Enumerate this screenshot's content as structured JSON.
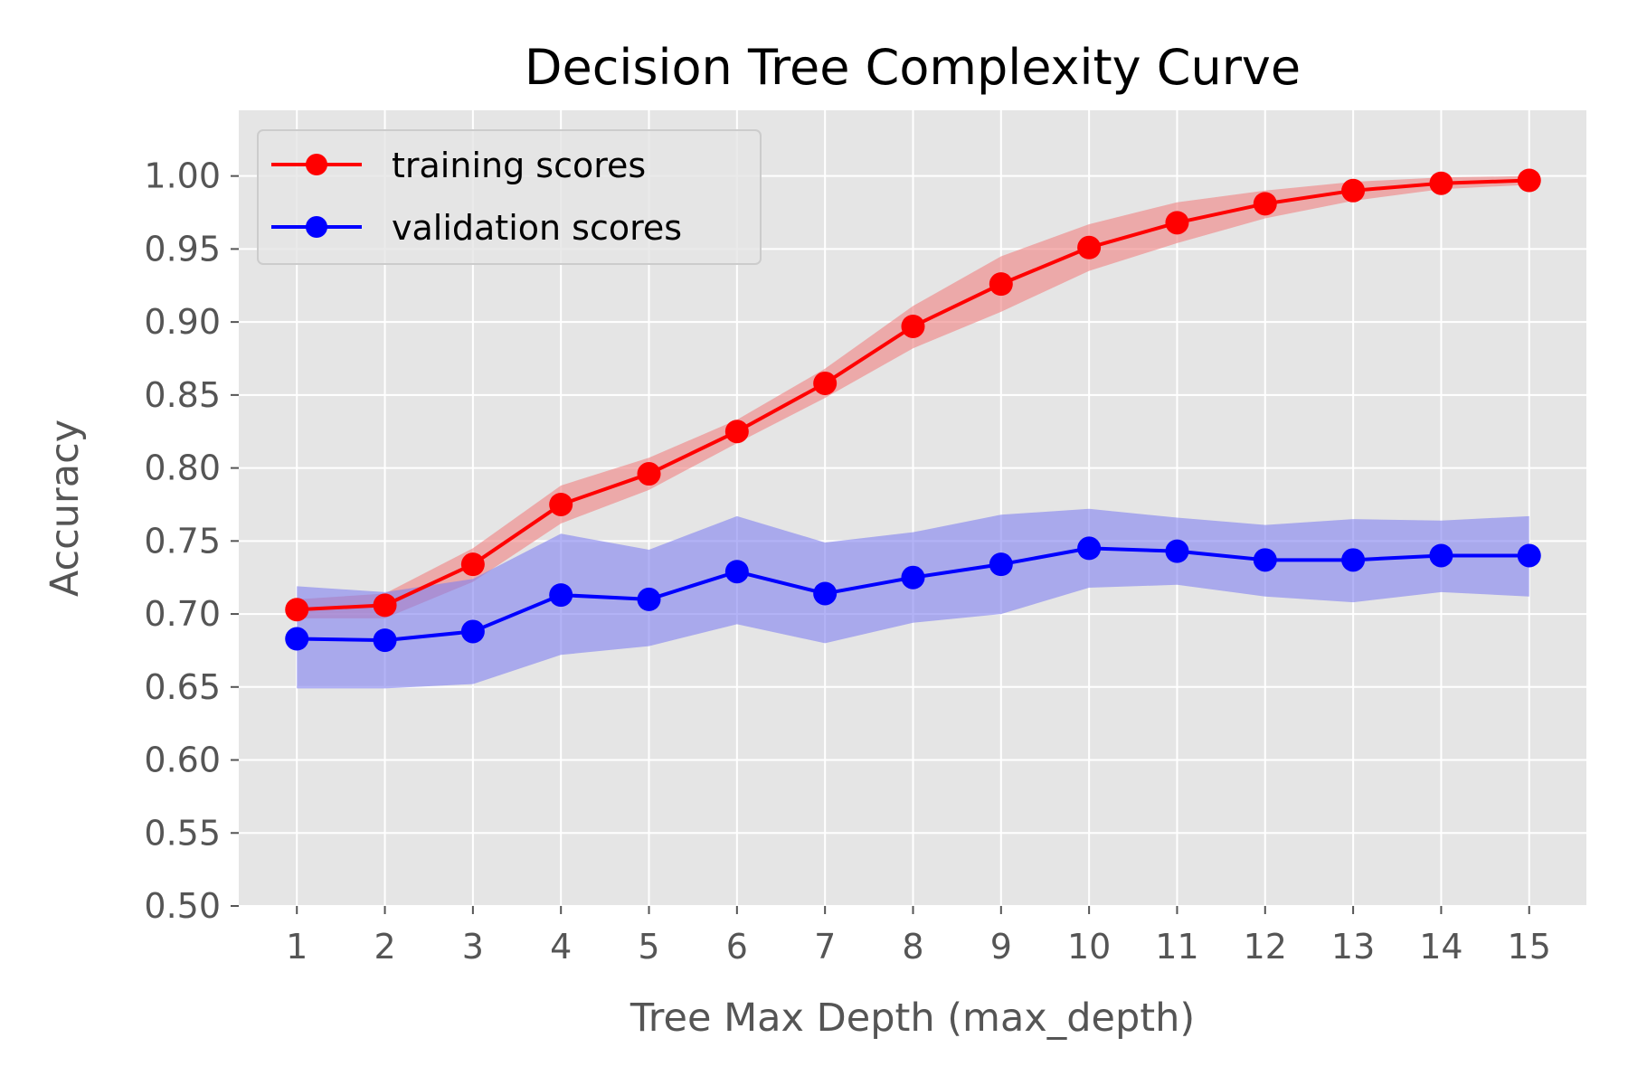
{
  "chart_data": {
    "type": "line",
    "title": "Decision Tree Complexity Curve",
    "xlabel": "Tree Max Depth (max_depth)",
    "ylabel": "Accuracy",
    "x": [
      1,
      2,
      3,
      4,
      5,
      6,
      7,
      8,
      9,
      10,
      11,
      12,
      13,
      14,
      15
    ],
    "xlim": [
      0.34,
      15.65
    ],
    "ylim": [
      0.5,
      1.045
    ],
    "yticks": [
      "0.50",
      "0.55",
      "0.60",
      "0.65",
      "0.70",
      "0.75",
      "0.80",
      "0.85",
      "0.90",
      "0.95",
      "1.00"
    ],
    "grid": true,
    "legend_position": "upper-left",
    "series": [
      {
        "name": "training scores",
        "color": "#ff0000",
        "band_color": "#f08080",
        "values": [
          0.703,
          0.706,
          0.734,
          0.775,
          0.796,
          0.825,
          0.858,
          0.897,
          0.926,
          0.951,
          0.968,
          0.981,
          0.99,
          0.995,
          0.997
        ],
        "band_low": [
          0.697,
          0.697,
          0.722,
          0.762,
          0.785,
          0.817,
          0.848,
          0.882,
          0.907,
          0.935,
          0.954,
          0.971,
          0.983,
          0.991,
          0.994
        ],
        "band_high": [
          0.71,
          0.714,
          0.745,
          0.788,
          0.807,
          0.833,
          0.868,
          0.911,
          0.945,
          0.967,
          0.982,
          0.99,
          0.996,
          0.999,
          1.0
        ]
      },
      {
        "name": "validation scores",
        "color": "#0000ff",
        "band_color": "#8080f0",
        "values": [
          0.683,
          0.682,
          0.688,
          0.713,
          0.71,
          0.729,
          0.714,
          0.725,
          0.734,
          0.745,
          0.743,
          0.737,
          0.737,
          0.74,
          0.74
        ],
        "band_low": [
          0.649,
          0.649,
          0.652,
          0.672,
          0.678,
          0.693,
          0.68,
          0.694,
          0.7,
          0.718,
          0.72,
          0.712,
          0.708,
          0.715,
          0.712
        ],
        "band_high": [
          0.719,
          0.715,
          0.724,
          0.755,
          0.744,
          0.767,
          0.749,
          0.756,
          0.768,
          0.772,
          0.766,
          0.761,
          0.765,
          0.764,
          0.767
        ]
      }
    ]
  }
}
